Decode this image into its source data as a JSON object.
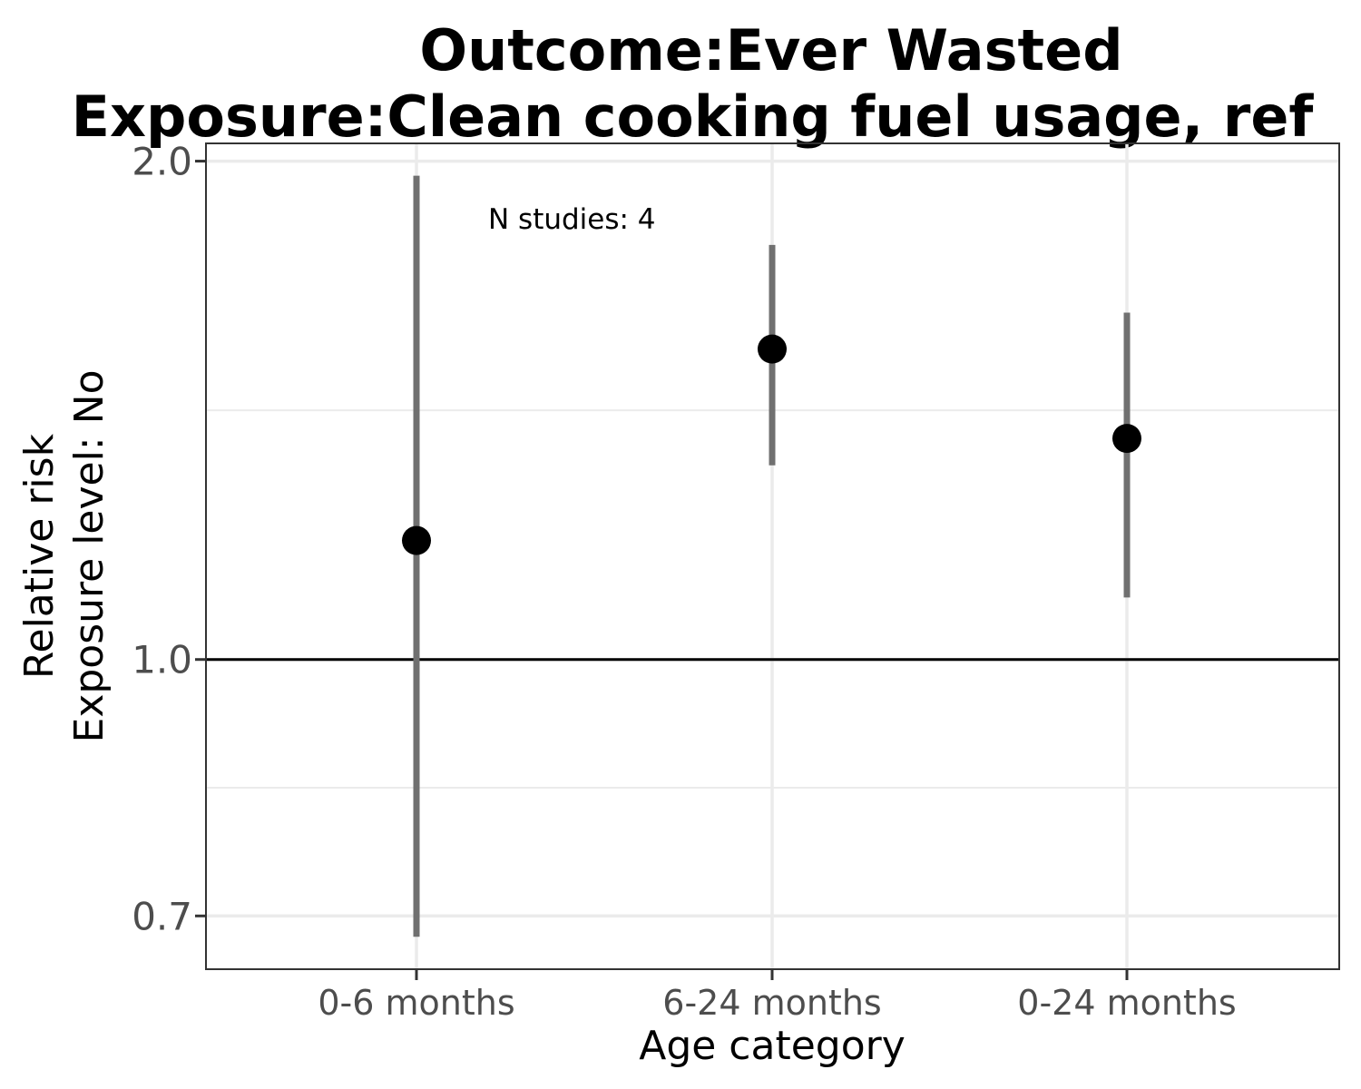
{
  "chart_data": {
    "type": "scatter",
    "title_lines": [
      "Outcome:Ever Wasted",
      "Exposure:Clean cooking fuel usage, ref"
    ],
    "xlabel": "Age category",
    "ylabel_lines": [
      "Relative risk",
      "Exposure level: No"
    ],
    "categories": [
      "0-6 months",
      "6-24 months",
      "0-24 months"
    ],
    "estimates": [
      1.18,
      1.54,
      1.36
    ],
    "ci_lower": [
      0.68,
      1.31,
      1.09
    ],
    "ci_upper": [
      1.96,
      1.78,
      1.62
    ],
    "y_scale": "log",
    "ylim": [
      0.65,
      2.05
    ],
    "yticks": [
      0.7,
      1.0,
      2.0
    ],
    "ytick_labels": [
      "0.7",
      "1.0",
      "2.0"
    ],
    "reference_line": 1.0,
    "annotation": "N studies: 4",
    "grid": true,
    "legend": "none",
    "colors": {
      "point": "#000000",
      "errorbar": "#707070",
      "reference": "#000000",
      "grid": "#ebebeb",
      "panel_border": "#333333"
    }
  }
}
